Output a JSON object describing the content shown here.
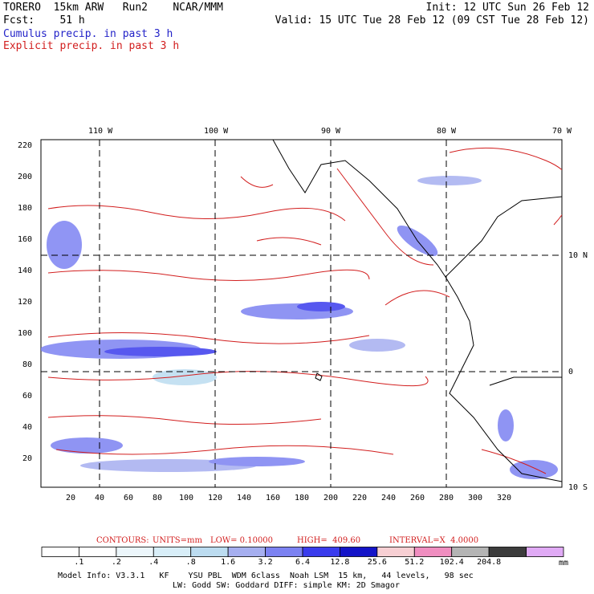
{
  "header": {
    "left_line1": "TORERO  15km ARW   Run2    NCAR/MMM",
    "left_line2": "Fcst:    51 h",
    "right_line1": "Init: 12 UTC Sun 26 Feb 12",
    "right_line2": "Valid: 15 UTC Tue 28 Feb 12 (09 CST Tue 28 Feb 12)",
    "legend_cumulus": "Cumulus precip. in past 3 h",
    "legend_explicit": "Explicit precip. in past 3 h"
  },
  "map": {
    "lon_labels": [
      "110 W",
      "100 W",
      "90 W",
      "80 W",
      "70 W"
    ],
    "lat_labels": [
      "10 N",
      "0",
      "10 S"
    ],
    "x_ticks": [
      "20",
      "40",
      "60",
      "80",
      "100",
      "120",
      "140",
      "160",
      "180",
      "200",
      "220",
      "240",
      "260",
      "280",
      "300",
      "320"
    ],
    "y_ticks": [
      "220",
      "200",
      "180",
      "160",
      "140",
      "120",
      "100",
      "80",
      "60",
      "40",
      "20"
    ],
    "colors": {
      "cumulus": "#2323c8",
      "explicit": "#d21e1e",
      "coast": "#000000"
    }
  },
  "contours_line": {
    "label": "CONTOURS:",
    "units": "UNITS=mm",
    "low": "LOW= 0.10000",
    "high": "HIGH=  409.60",
    "interval": "INTERVAL=X  4.0000"
  },
  "colorbar": {
    "labels": [
      ".1",
      ".2",
      ".4",
      ".8",
      "1.6",
      "3.2",
      "6.4",
      "12.8",
      "25.6",
      "51.2",
      "102.4",
      "204.8"
    ],
    "colors": [
      "#ffffff",
      "#ffffff",
      "#ecf6fb",
      "#d8eef8",
      "#bcdcf0",
      "#a6aff0",
      "#7c82f2",
      "#3a3ced",
      "#1414c8",
      "#f7cfd3",
      "#f08ec0",
      "#b4b4b4",
      "#3c3c3c",
      "#e0aaf5"
    ],
    "units": "mm"
  },
  "model_info": {
    "line1": "Model Info: V3.3.1   KF    YSU PBL  WDM 6class  Noah LSM  15 km,   44 levels,   98 sec",
    "line2": "LW: Godd SW: Goddard DIFF: simple KM: 2D Smagor"
  }
}
